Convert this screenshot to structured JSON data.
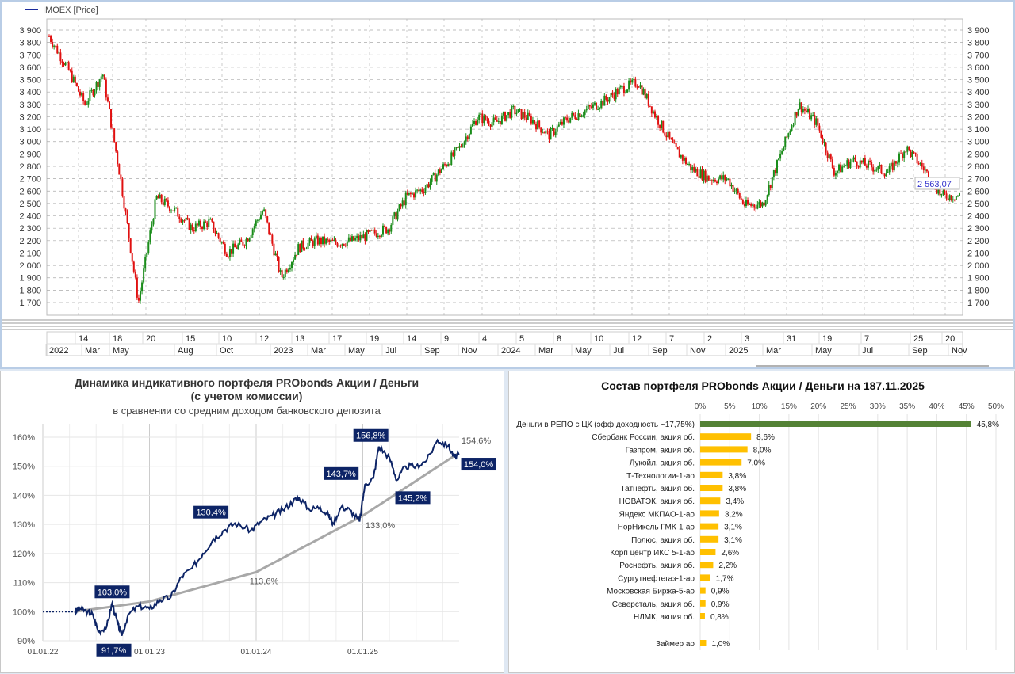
{
  "price_chart": {
    "legend": "IMOEX [Price]",
    "last_price": "2 563,07",
    "y_ticks": [
      "3 900",
      "3 800",
      "3 700",
      "3 600",
      "3 500",
      "3 400",
      "3 300",
      "3 200",
      "3 100",
      "3 000",
      "2 900",
      "2 800",
      "2 700",
      "2 600",
      "2 500",
      "2 400",
      "2 300",
      "2 200",
      "2 100",
      "2 000",
      "1 900",
      "1 800",
      "1 700"
    ],
    "axis_days": [
      "14",
      "18",
      "20",
      "15",
      "10",
      "12",
      "13",
      "17",
      "19",
      "14",
      "9",
      "4",
      "5",
      "8",
      "10",
      "12",
      "7",
      "2",
      "3",
      "31",
      "19",
      "7",
      "25",
      "20"
    ],
    "axis_months": [
      "2022",
      "Mar",
      "May",
      "Aug",
      "Oct",
      "2023",
      "Mar",
      "May",
      "Jul",
      "Sep",
      "Nov",
      "2024",
      "Mar",
      "May",
      "Jul",
      "Sep",
      "Nov",
      "2025",
      "Mar",
      "May",
      "Jul",
      "Sep",
      "Nov"
    ],
    "colors": {
      "up": "#1a8c1a",
      "down": "#e01010",
      "legend": "#1a2a9c"
    },
    "chart_data": {
      "type": "candlestick",
      "series_name": "IMOEX",
      "ylim": [
        1650,
        3950
      ],
      "approx_closes": [
        [
          "2022-01",
          3850
        ],
        [
          "2022-02a",
          3600
        ],
        [
          "2022-02b",
          3300
        ],
        [
          "2022-02c",
          3550
        ],
        [
          "2022-02d",
          2700
        ],
        [
          "2022-02e",
          1700
        ],
        [
          "2022-03",
          2550
        ],
        [
          "2022-04",
          2450
        ],
        [
          "2022-05",
          2300
        ],
        [
          "2022-06",
          2350
        ],
        [
          "2022-07",
          2100
        ],
        [
          "2022-08",
          2200
        ],
        [
          "2022-09a",
          2450
        ],
        [
          "2022-09b",
          1900
        ],
        [
          "2022-10",
          2150
        ],
        [
          "2022-11",
          2200
        ],
        [
          "2022-12",
          2180
        ],
        [
          "2023-01",
          2200
        ],
        [
          "2023-02",
          2250
        ],
        [
          "2023-03",
          2300
        ],
        [
          "2023-04",
          2550
        ],
        [
          "2023-05",
          2620
        ],
        [
          "2023-06",
          2780
        ],
        [
          "2023-07",
          2950
        ],
        [
          "2023-08",
          3200
        ],
        [
          "2023-09",
          3150
        ],
        [
          "2023-10",
          3250
        ],
        [
          "2023-11",
          3180
        ],
        [
          "2023-12",
          3050
        ],
        [
          "2024-01",
          3180
        ],
        [
          "2024-02",
          3250
        ],
        [
          "2024-03",
          3320
        ],
        [
          "2024-04",
          3420
        ],
        [
          "2024-05",
          3480
        ],
        [
          "2024-06",
          3200
        ],
        [
          "2024-07",
          2950
        ],
        [
          "2024-08",
          2780
        ],
        [
          "2024-09",
          2700
        ],
        [
          "2024-10",
          2700
        ],
        [
          "2024-11",
          2480
        ],
        [
          "2024-12",
          2500
        ],
        [
          "2025-01",
          2900
        ],
        [
          "2025-02",
          3300
        ],
        [
          "2025-03",
          3150
        ],
        [
          "2025-04",
          2750
        ],
        [
          "2025-05",
          2850
        ],
        [
          "2025-06",
          2800
        ],
        [
          "2025-07",
          2750
        ],
        [
          "2025-08",
          2950
        ],
        [
          "2025-09",
          2780
        ],
        [
          "2025-10",
          2560
        ],
        [
          "2025-11",
          2563.07
        ]
      ]
    }
  },
  "portfolio_chart": {
    "title1": "Динамика индикативного портфеля PRObonds Акции / Деньги",
    "title2": "(с учетом комиссии)",
    "subtitle": "в сравнении со средним доходом банковского депозита",
    "colors": {
      "portfolio": "#0d2466",
      "deposit": "#a8a8a8"
    },
    "chart_data": {
      "type": "line",
      "ylim": [
        90,
        160
      ],
      "y_ticks": [
        "90%",
        "100%",
        "110%",
        "120%",
        "130%",
        "140%",
        "150%",
        "160%"
      ],
      "x_ticks": [
        "01.01.22",
        "01.01.23",
        "01.01.24",
        "01.01.25"
      ],
      "series": [
        {
          "name": "portfolio",
          "points": [
            [
              2022.0,
              100
            ],
            [
              2022.3,
              100
            ],
            [
              2022.35,
              101
            ],
            [
              2022.42,
              100
            ],
            [
              2022.47,
              99
            ],
            [
              2022.52,
              93
            ],
            [
              2022.6,
              95
            ],
            [
              2022.65,
              103
            ],
            [
              2022.7,
              96
            ],
            [
              2022.74,
              91.7
            ],
            [
              2022.8,
              99
            ],
            [
              2022.9,
              102
            ],
            [
              2023.0,
              101
            ],
            [
              2023.1,
              104
            ],
            [
              2023.2,
              105
            ],
            [
              2023.3,
              112
            ],
            [
              2023.4,
              115
            ],
            [
              2023.5,
              120
            ],
            [
              2023.6,
              125
            ],
            [
              2023.7,
              128
            ],
            [
              2023.8,
              130.4
            ],
            [
              2023.95,
              128
            ],
            [
              2024.05,
              131
            ],
            [
              2024.15,
              133
            ],
            [
              2024.25,
              135
            ],
            [
              2024.35,
              138
            ],
            [
              2024.4,
              139.5
            ],
            [
              2024.5,
              135
            ],
            [
              2024.6,
              136
            ],
            [
              2024.68,
              133
            ],
            [
              2024.72,
              130.5
            ],
            [
              2024.8,
              136
            ],
            [
              2024.88,
              135
            ],
            [
              2024.97,
              131
            ],
            [
              2025.02,
              143.7
            ],
            [
              2025.1,
              146
            ],
            [
              2025.15,
              156.8
            ],
            [
              2025.25,
              153
            ],
            [
              2025.32,
              145.2
            ],
            [
              2025.4,
              150
            ],
            [
              2025.5,
              150
            ],
            [
              2025.6,
              152
            ],
            [
              2025.7,
              159
            ],
            [
              2025.8,
              157
            ],
            [
              2025.86,
              153
            ],
            [
              2025.9,
              154
            ]
          ]
        },
        {
          "name": "deposit",
          "points": [
            [
              2022.3,
              100
            ],
            [
              2023.0,
              103.5
            ],
            [
              2024.0,
              113.6
            ],
            [
              2025.0,
              133.0
            ],
            [
              2025.9,
              154.6
            ]
          ]
        }
      ],
      "annotations_portfolio": [
        {
          "label": "103,0%",
          "x": 2022.65,
          "y": 103
        },
        {
          "label": "91,7%",
          "x": 2022.74,
          "y": 91.7
        },
        {
          "label": "130,4%",
          "x": 2023.8,
          "y": 130.4
        },
        {
          "label": "143,7%",
          "x": 2025.02,
          "y": 143.7
        },
        {
          "label": "156,8%",
          "x": 2025.15,
          "y": 156.8
        },
        {
          "label": "145,2%",
          "x": 2025.32,
          "y": 145.2
        },
        {
          "label": "154,0%",
          "x": 2025.9,
          "y": 154.0
        }
      ],
      "annotations_deposit": [
        {
          "label": "113,6%",
          "x": 2024.0,
          "y": 113.6
        },
        {
          "label": "133,0%",
          "x": 2025.0,
          "y": 133.0
        },
        {
          "label": "154,6%",
          "x": 2025.9,
          "y": 154.6
        }
      ]
    }
  },
  "composition_chart": {
    "title": "Состав портфеля PRObonds Акции / Деньги на 187.11.2025",
    "colors": {
      "cash": "#548235",
      "stock": "#ffc000"
    },
    "chart_data": {
      "type": "bar",
      "orientation": "horizontal",
      "xlim": [
        0,
        50
      ],
      "x_ticks": [
        "0%",
        "5%",
        "10%",
        "15%",
        "20%",
        "25%",
        "30%",
        "35%",
        "40%",
        "45%",
        "50%"
      ],
      "categories": [
        "Деньги в РЕПО с ЦК (эфф.доходность ~17,75%)",
        "Сбербанк России, акция об.",
        "Газпром, акция об.",
        "Лукойл, акция об.",
        "Т-Технологии-1-ао",
        "Татнефть, акция об.",
        "НОВАТЭК, акция об.",
        "Яндекс МКПАО-1-ао",
        "НорНикель ГМК-1-ао",
        "Полюс, акция об.",
        "Корп центр ИКС 5-1-ао",
        "Роснефть, акция об.",
        "Сургутнефтегаз-1-ао",
        "Московская Биржа-5-ао",
        "Северсталь, акция об.",
        "НЛМК, акция об.",
        "Займер ао"
      ],
      "values": [
        45.8,
        8.6,
        8.0,
        7.0,
        3.8,
        3.8,
        3.4,
        3.2,
        3.1,
        3.1,
        2.6,
        2.2,
        1.7,
        0.9,
        0.9,
        0.8,
        1.0
      ],
      "labels": [
        "45,8%",
        "8,6%",
        "8,0%",
        "7,0%",
        "3,8%",
        "3,8%",
        "3,4%",
        "3,2%",
        "3,1%",
        "3,1%",
        "2,6%",
        "2,2%",
        "1,7%",
        "0,9%",
        "0,9%",
        "0,8%",
        "1,0%"
      ]
    }
  }
}
